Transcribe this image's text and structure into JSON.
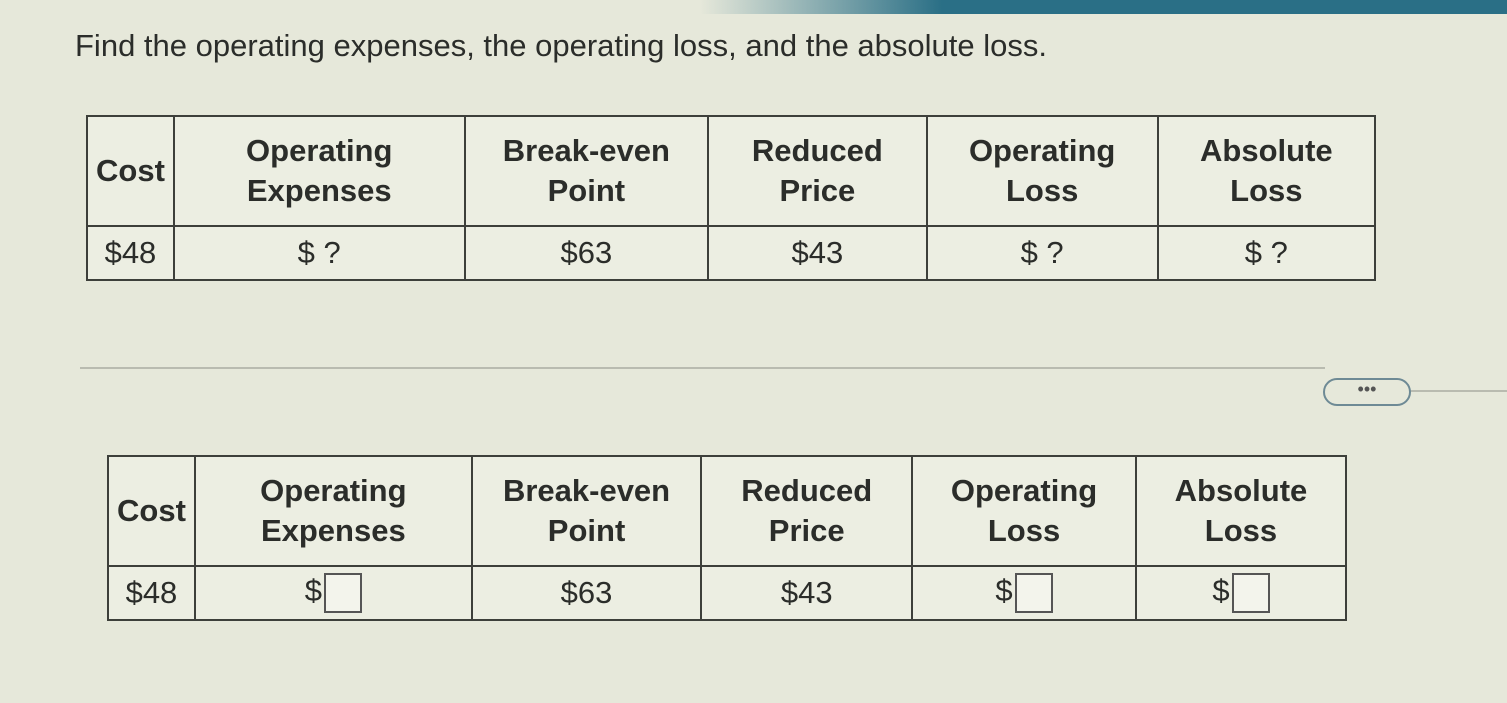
{
  "question": "Find the operating expenses, the operating loss, and the absolute loss.",
  "headers": [
    "Cost",
    "Operating Expenses",
    "Break-even Point",
    "Reduced Price",
    "Operating Loss",
    "Absolute Loss"
  ],
  "given_table": {
    "cost": "$48",
    "operating_expenses": "$ ?",
    "break_even": "$63",
    "reduced_price": "$43",
    "operating_loss": "$ ?",
    "absolute_loss": "$ ?"
  },
  "answer_table": {
    "cost": "$48",
    "currency": "$",
    "break_even": "$63",
    "reduced_price": "$43",
    "operating_expenses_value": "",
    "operating_loss_value": "",
    "absolute_loss_value": ""
  },
  "more_button": "•••"
}
